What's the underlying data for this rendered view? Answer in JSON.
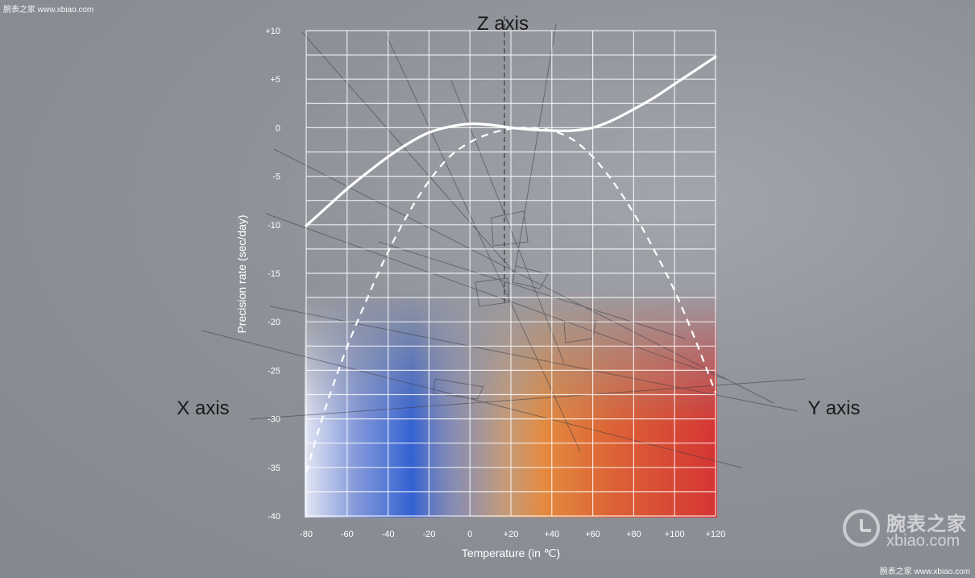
{
  "watermark": {
    "top": "腕表之家 www.xbiao.com",
    "bottom": "腕表之家 www.xbiao.com",
    "logo_cn": "腕表之家",
    "logo_en": "xbiao.com"
  },
  "chart_data": {
    "type": "line",
    "title": "",
    "xlabel": "Temperature (in ℃)",
    "ylabel": "Precision rate (sec/day)",
    "xlim": [
      -80,
      120
    ],
    "ylim": [
      -40,
      10
    ],
    "x_ticks": [
      "-80",
      "-60",
      "-40",
      "-20",
      "0",
      "+20",
      "+40",
      "+60",
      "+80",
      "+100",
      "+120"
    ],
    "y_ticks": [
      "+10",
      "+5",
      "0",
      "-5",
      "-10",
      "-15",
      "-20",
      "-25",
      "-30",
      "-35",
      "-40"
    ],
    "grid": true,
    "series": [
      {
        "style": "solid",
        "x": [
          -80,
          -70,
          -60,
          -50,
          -40,
          -30,
          -20,
          -10,
          0,
          10,
          20,
          30,
          40,
          50,
          60,
          70,
          80,
          90,
          100,
          110,
          120
        ],
        "y": [
          -10.1,
          -8.2,
          -6.3,
          -4.6,
          -3.0,
          -1.6,
          -0.5,
          0.1,
          0.4,
          0.3,
          0.0,
          -0.2,
          -0.3,
          -0.3,
          0.0,
          0.8,
          1.9,
          3.1,
          4.5,
          5.9,
          7.3
        ]
      },
      {
        "style": "dashed",
        "x": [
          -80,
          -70,
          -60,
          -50,
          -40,
          -30,
          -20,
          -10,
          0,
          10,
          20,
          30,
          40,
          50,
          60,
          70,
          80,
          90,
          100,
          110,
          120
        ],
        "y": [
          -35.5,
          -28.5,
          -22.6,
          -17.5,
          -12.8,
          -8.8,
          -5.5,
          -3.0,
          -1.5,
          -0.6,
          -0.1,
          0.0,
          -0.3,
          -1.2,
          -3.0,
          -5.6,
          -8.8,
          -12.6,
          -16.8,
          -21.8,
          -27.3
        ]
      }
    ],
    "annotations": [
      "Z axis",
      "X axis",
      "Y axis"
    ]
  }
}
